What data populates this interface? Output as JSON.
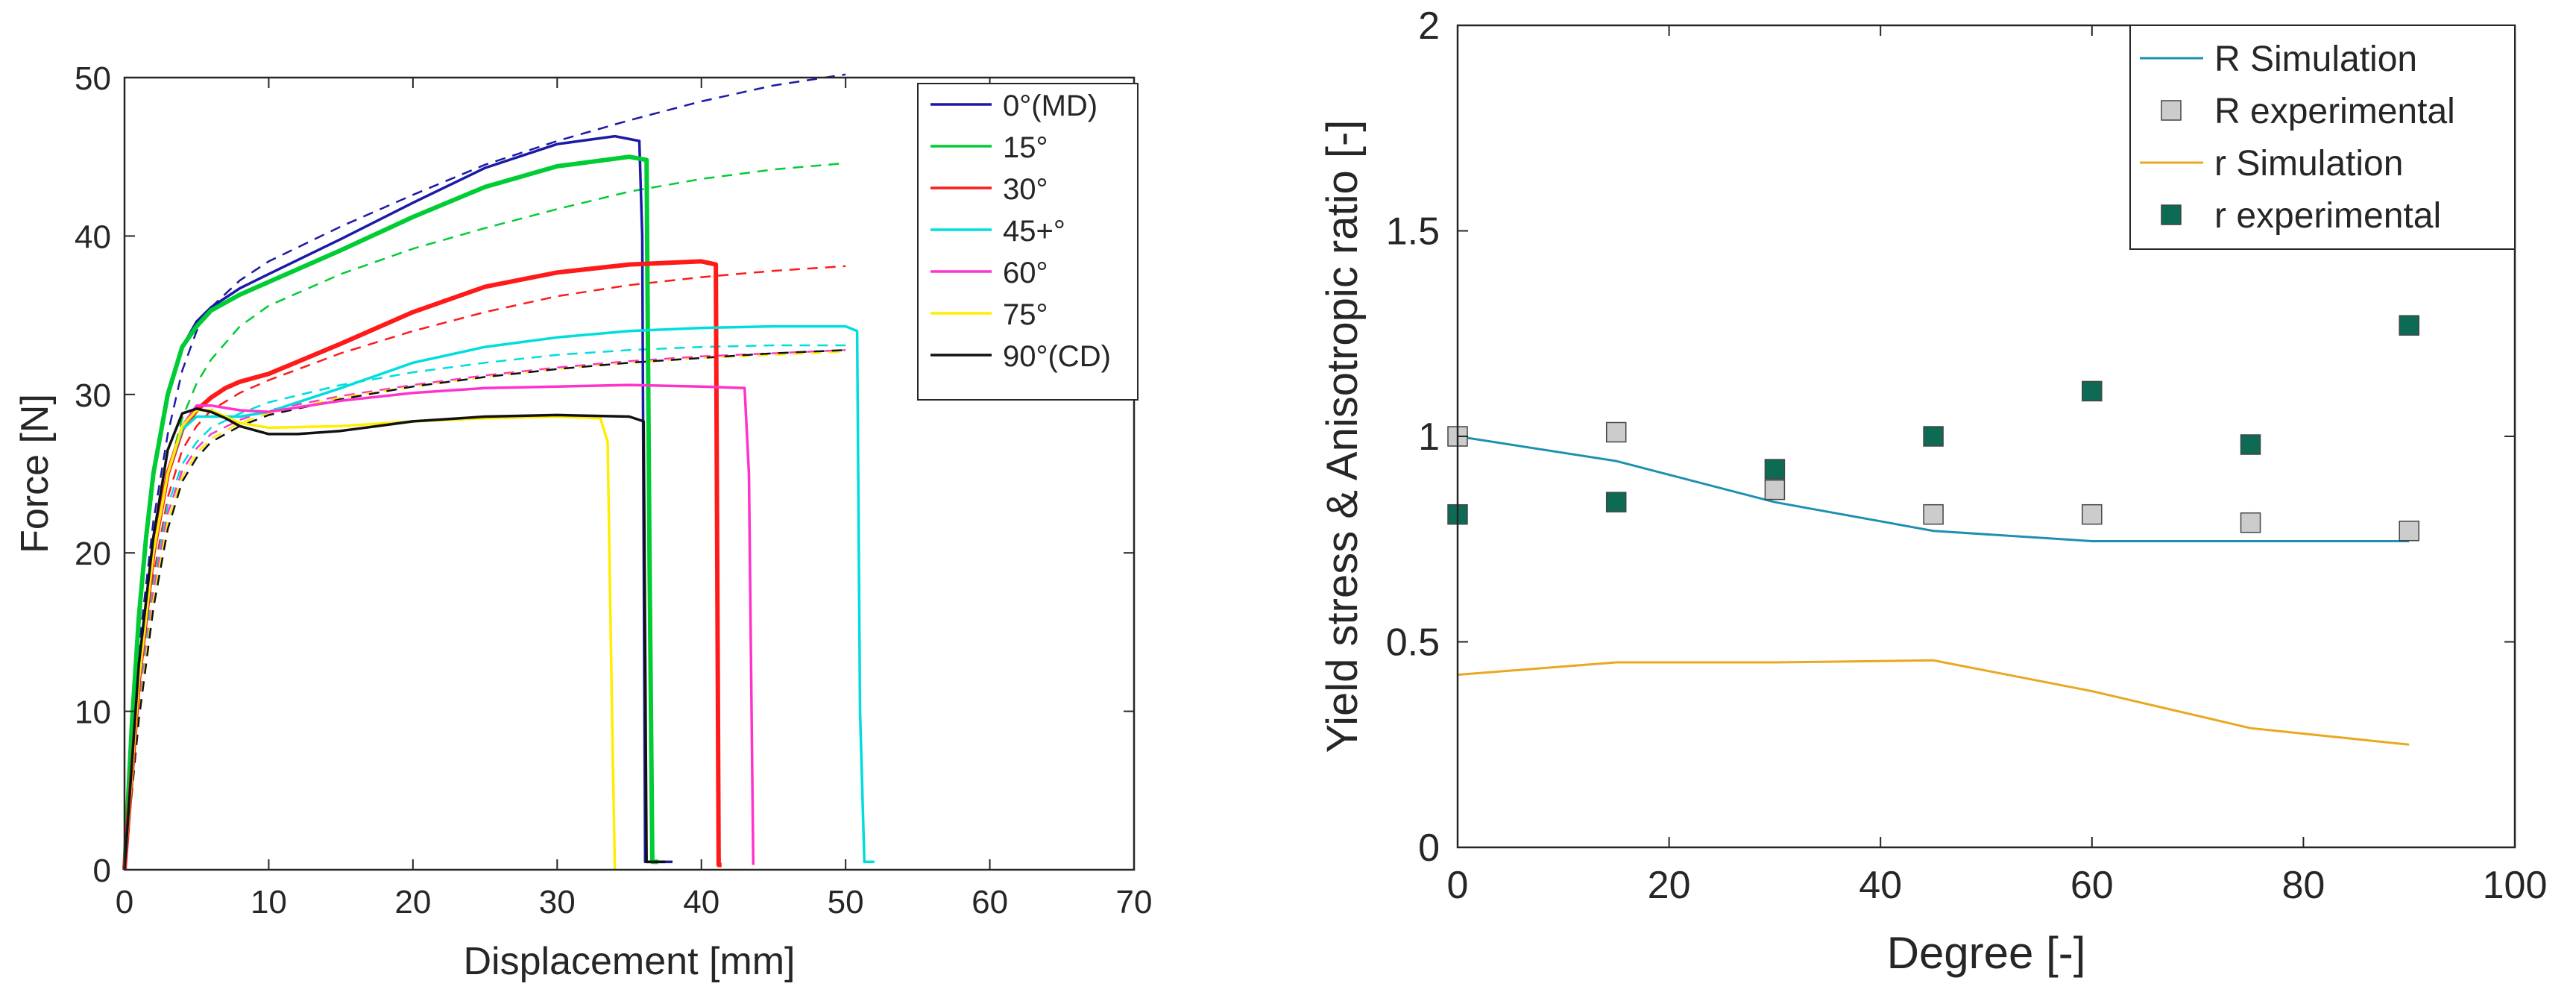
{
  "chart_data": [
    {
      "type": "line",
      "title": "",
      "xlabel": "Displacement [mm]",
      "ylabel": "Force [N]",
      "xlim": [
        0,
        70
      ],
      "ylim": [
        0,
        50
      ],
      "xticks": [
        "0",
        "10",
        "20",
        "30",
        "40",
        "50",
        "60",
        "70"
      ],
      "yticks": [
        "0",
        "10",
        "20",
        "30",
        "40",
        "50"
      ],
      "grid": false,
      "legend_position": "top-right",
      "legend": [
        "0°(MD)",
        "15°",
        "30°",
        "45+°",
        "60°",
        "75°",
        "90°(CD)"
      ],
      "series": [
        {
          "name": "0°(MD)",
          "color": "#1a1aa6",
          "style": "solid",
          "x": [
            0,
            0.5,
            1,
            1.5,
            2,
            3,
            4,
            5,
            6,
            8,
            10,
            15,
            20,
            25,
            30,
            34,
            35.7,
            35.9,
            36.1,
            36.6,
            38
          ],
          "y": [
            0,
            9,
            16,
            21,
            25,
            30,
            33,
            34.6,
            35.5,
            36.7,
            37.6,
            39.8,
            42.1,
            44.3,
            45.8,
            46.3,
            46,
            40,
            0.5,
            0.5,
            0.5
          ]
        },
        {
          "name": "15°",
          "color": "#00cc33",
          "style": "solid",
          "x": [
            0,
            0.5,
            1,
            1.5,
            2,
            3,
            4,
            5,
            6,
            8,
            10,
            15,
            20,
            25,
            30,
            35,
            36.2,
            36.4,
            36.6,
            37
          ],
          "y": [
            0,
            9,
            16,
            21,
            25,
            30,
            33,
            34.3,
            35.3,
            36.3,
            37.1,
            39.1,
            41.2,
            43.1,
            44.4,
            45,
            44.8,
            20,
            0.5,
            0.5
          ]
        },
        {
          "name": "30°",
          "color": "#ff1a1a",
          "style": "solid",
          "x": [
            0,
            1,
            2,
            3,
            4,
            5,
            6,
            7,
            8,
            10,
            15,
            20,
            25,
            30,
            35,
            40,
            41,
            41.2,
            41.4
          ],
          "y": [
            0,
            12,
            20,
            25,
            27.8,
            29,
            29.8,
            30.4,
            30.8,
            31.3,
            33.2,
            35.2,
            36.8,
            37.7,
            38.2,
            38.4,
            38.2,
            0.3,
            0.3
          ]
        },
        {
          "name": "45+°",
          "color": "#00dddd",
          "style": "solid",
          "x": [
            0,
            1,
            2,
            3,
            4,
            5,
            6,
            8,
            10,
            15,
            20,
            25,
            30,
            35,
            40,
            45,
            50,
            50.8,
            51,
            51.3,
            52
          ],
          "y": [
            0,
            12,
            20,
            25,
            27.8,
            28.6,
            28.6,
            28.6,
            28.9,
            30.4,
            32,
            33,
            33.6,
            34,
            34.2,
            34.3,
            34.3,
            34,
            10,
            0.5,
            0.5
          ]
        },
        {
          "name": "60°",
          "color": "#ff33cc",
          "style": "solid",
          "x": [
            0,
            1,
            2,
            3,
            4,
            5,
            6,
            8,
            10,
            15,
            20,
            25,
            30,
            35,
            40,
            43,
            43.3,
            43.6
          ],
          "y": [
            0,
            12,
            20,
            25,
            28,
            29.3,
            29.3,
            29,
            28.9,
            29.6,
            30.1,
            30.4,
            30.5,
            30.6,
            30.5,
            30.4,
            25,
            0.3
          ]
        },
        {
          "name": "75°",
          "color": "#ffee00",
          "style": "solid",
          "x": [
            0,
            1,
            2,
            3,
            4,
            5,
            6,
            8,
            10,
            15,
            20,
            25,
            30,
            33,
            33.5,
            33.8,
            34
          ],
          "y": [
            0,
            12,
            20,
            25,
            28,
            29,
            29,
            28.2,
            27.9,
            28,
            28.3,
            28.5,
            28.6,
            28.5,
            27,
            10,
            0
          ]
        },
        {
          "name": "90°(CD)",
          "color": "#111111",
          "style": "solid",
          "x": [
            0,
            1,
            2,
            3,
            4,
            5,
            6,
            7,
            8,
            10,
            12,
            15,
            20,
            25,
            30,
            35,
            36,
            36.2,
            36.5,
            37.5
          ],
          "y": [
            0,
            13,
            21,
            26.5,
            28.8,
            29.1,
            28.9,
            28.5,
            28,
            27.5,
            27.5,
            27.7,
            28.3,
            28.6,
            28.7,
            28.6,
            28.3,
            0.5,
            0.5,
            0.5
          ]
        },
        {
          "name": "0°(MD) simulation",
          "color": "#1a1aa6",
          "style": "dashed",
          "x": [
            0,
            1,
            2,
            3,
            4,
            5,
            6,
            8,
            10,
            15,
            20,
            25,
            30,
            35,
            40,
            45,
            50
          ],
          "y": [
            0,
            14,
            22,
            27.5,
            31.5,
            34,
            35.5,
            37.2,
            38.4,
            40.6,
            42.6,
            44.5,
            46,
            47.3,
            48.5,
            49.5,
            50.2
          ]
        },
        {
          "name": "15° simulation",
          "color": "#00cc33",
          "style": "dashed",
          "x": [
            0,
            1,
            2,
            3,
            4,
            5,
            6,
            8,
            10,
            15,
            20,
            25,
            30,
            35,
            40,
            45,
            50
          ],
          "y": [
            0,
            13,
            20,
            25,
            28.5,
            30.7,
            32.2,
            34.3,
            35.6,
            37.6,
            39.2,
            40.5,
            41.7,
            42.8,
            43.6,
            44.2,
            44.6
          ]
        },
        {
          "name": "30° simulation",
          "color": "#ff1a1a",
          "style": "dashed",
          "x": [
            0,
            1,
            2,
            3,
            4,
            5,
            6,
            8,
            10,
            15,
            20,
            25,
            30,
            35,
            40,
            45,
            50
          ],
          "y": [
            0,
            11,
            18.5,
            23.5,
            26.5,
            28,
            29,
            30.1,
            30.9,
            32.6,
            34,
            35.2,
            36.2,
            36.9,
            37.4,
            37.8,
            38.1
          ]
        },
        {
          "name": "45+° simulation",
          "color": "#00dddd",
          "style": "dashed",
          "x": [
            0,
            1,
            2,
            3,
            4,
            5,
            6,
            8,
            10,
            15,
            20,
            25,
            30,
            35,
            40,
            45,
            50
          ],
          "y": [
            0,
            10.5,
            18,
            23,
            25.6,
            27,
            27.9,
            28.8,
            29.5,
            30.6,
            31.4,
            32,
            32.5,
            32.8,
            33,
            33.1,
            33.1
          ]
        },
        {
          "name": "60° simulation",
          "color": "#ff33cc",
          "style": "dashed",
          "x": [
            0,
            1,
            2,
            3,
            4,
            5,
            6,
            8,
            10,
            15,
            20,
            25,
            30,
            35,
            40,
            45,
            50
          ],
          "y": [
            0,
            10,
            17.5,
            22.5,
            25.2,
            26.6,
            27.5,
            28.4,
            29,
            29.9,
            30.6,
            31.2,
            31.7,
            32.1,
            32.4,
            32.6,
            32.8
          ]
        },
        {
          "name": "75° simulation",
          "color": "#ffee00",
          "style": "dashed",
          "x": [
            0,
            1,
            2,
            3,
            4,
            5,
            6,
            8,
            10,
            15,
            20,
            25,
            30,
            35,
            40,
            45,
            50
          ],
          "y": [
            0,
            9.8,
            17,
            22,
            24.8,
            26.3,
            27.2,
            28.2,
            28.8,
            29.8,
            30.5,
            31.1,
            31.6,
            32,
            32.3,
            32.5,
            32.7
          ]
        },
        {
          "name": "90°(CD) simulation",
          "color": "#111111",
          "style": "dashed",
          "x": [
            0,
            1,
            2,
            3,
            4,
            5,
            6,
            8,
            10,
            15,
            20,
            25,
            30,
            35,
            40,
            45,
            50
          ],
          "y": [
            0,
            9.5,
            16.5,
            21.5,
            24.5,
            26,
            27,
            28,
            28.7,
            29.7,
            30.5,
            31.1,
            31.6,
            32,
            32.3,
            32.6,
            32.8
          ]
        }
      ]
    },
    {
      "type": "line",
      "title": "",
      "xlabel": "Degree [-]",
      "ylabel": "Yield stress & Anisotropic ratio  [-]",
      "xlim": [
        0,
        100
      ],
      "ylim": [
        0,
        2
      ],
      "xticks": [
        "0",
        "20",
        "40",
        "60",
        "80",
        "100"
      ],
      "yticks": [
        "0",
        "0.5",
        "1",
        "1.5",
        "2"
      ],
      "grid": false,
      "legend_position": "top-right",
      "legend": [
        "R Simulation",
        "R experimental",
        "r Simulation",
        "r experimental"
      ],
      "series": [
        {
          "name": "R Simulation",
          "kind": "line",
          "color": "#1f8fb0",
          "x": [
            0,
            15,
            30,
            45,
            60,
            75,
            90
          ],
          "y": [
            1.0,
            0.94,
            0.84,
            0.77,
            0.745,
            0.745,
            0.745
          ]
        },
        {
          "name": "R experimental",
          "kind": "marker",
          "color": "#cccccc",
          "x": [
            0,
            15,
            30,
            45,
            60,
            75,
            90
          ],
          "y": [
            1.0,
            1.01,
            0.87,
            0.81,
            0.81,
            0.79,
            0.77
          ]
        },
        {
          "name": "r Simulation",
          "kind": "line",
          "color": "#e8a820",
          "x": [
            0,
            15,
            30,
            45,
            60,
            75,
            90
          ],
          "y": [
            0.42,
            0.45,
            0.45,
            0.455,
            0.38,
            0.29,
            0.25
          ]
        },
        {
          "name": "r experimental",
          "kind": "marker",
          "color": "#0d6b55",
          "x": [
            0,
            15,
            30,
            45,
            60,
            75,
            90
          ],
          "y": [
            0.81,
            0.84,
            0.92,
            1.0,
            1.11,
            0.98,
            1.27
          ]
        }
      ]
    }
  ]
}
